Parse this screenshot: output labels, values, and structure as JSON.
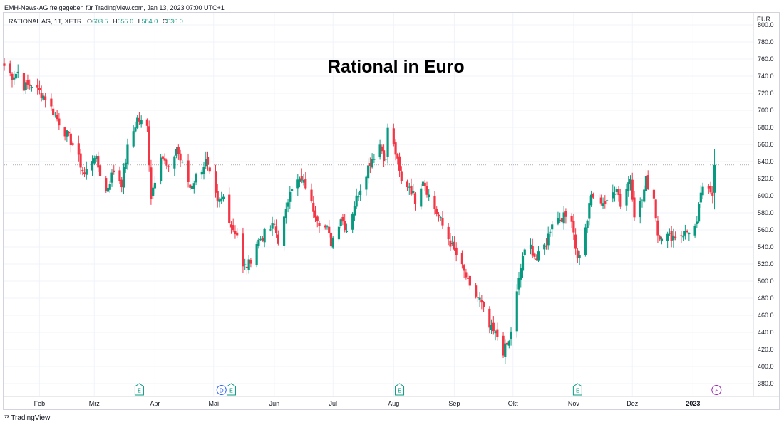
{
  "header": {
    "published_note": "EMH-News-AG freigegeben für TradingView.com, Jan 13, 2023 07:00 UTC+1"
  },
  "legend": {
    "symbol": "RATIONAL AG, 1T, XETR",
    "open_label": "O",
    "open_value": "603.5",
    "high_label": "H",
    "high_value": "655.0",
    "low_label": "L",
    "low_value": "584.0",
    "close_label": "C",
    "close_value": "636.0"
  },
  "currency": "EUR",
  "footer": {
    "brand": "TradingView"
  },
  "colors": {
    "up": "#089981",
    "down": "#f23645",
    "event_earnings": "#089981",
    "event_dividend": "#2962ff",
    "event_split": "#9c27b0"
  },
  "chart_data": {
    "type": "candlestick",
    "title": "Rational in Euro",
    "ylabel": "EUR",
    "ylim": [
      370,
      810
    ],
    "yticks": [
      380,
      400,
      420,
      440,
      460,
      480,
      500,
      520,
      540,
      560,
      580,
      600,
      620,
      640,
      660,
      680,
      700,
      720,
      740,
      760,
      780,
      800
    ],
    "ytick_labels": [
      "380.0",
      "400.0",
      "420.0",
      "440.0",
      "460.0",
      "480.0",
      "500.0",
      "520.0",
      "540.0",
      "560.0",
      "580.0",
      "600.0",
      "620.0",
      "640.0",
      "660.0",
      "680.0",
      "700.0",
      "720.0",
      "740.0",
      "760.0",
      "780.0",
      "800.0"
    ],
    "x_start": "2022-01-14",
    "x_end": "2023-01-22",
    "month_ticks": [
      {
        "date": "2022-02-01",
        "label": "Feb",
        "bold": false
      },
      {
        "date": "2022-03-01",
        "label": "Mrz",
        "bold": false
      },
      {
        "date": "2022-04-01",
        "label": "Apr",
        "bold": false
      },
      {
        "date": "2022-05-01",
        "label": "Mai",
        "bold": false
      },
      {
        "date": "2022-06-01",
        "label": "Jun",
        "bold": false
      },
      {
        "date": "2022-07-01",
        "label": "Jul",
        "bold": false
      },
      {
        "date": "2022-08-01",
        "label": "Aug",
        "bold": false
      },
      {
        "date": "2022-09-01",
        "label": "Sep",
        "bold": false
      },
      {
        "date": "2022-10-01",
        "label": "Okt",
        "bold": false
      },
      {
        "date": "2022-11-01",
        "label": "Nov",
        "bold": false
      },
      {
        "date": "2022-12-01",
        "label": "Dez",
        "bold": false
      },
      {
        "date": "2023-01-01",
        "label": "2023",
        "bold": true
      }
    ],
    "last_price_line": 636,
    "anchors": [
      {
        "date": "2022-01-14",
        "close": 752
      },
      {
        "date": "2022-01-18",
        "close": 740
      },
      {
        "date": "2022-01-21",
        "close": 745
      },
      {
        "date": "2022-01-24",
        "close": 728
      },
      {
        "date": "2022-01-28",
        "close": 730
      },
      {
        "date": "2022-02-04",
        "close": 715
      },
      {
        "date": "2022-02-10",
        "close": 690
      },
      {
        "date": "2022-02-14",
        "close": 675
      },
      {
        "date": "2022-02-18",
        "close": 660
      },
      {
        "date": "2022-02-24",
        "close": 625
      },
      {
        "date": "2022-03-01",
        "close": 648
      },
      {
        "date": "2022-03-07",
        "close": 605
      },
      {
        "date": "2022-03-11",
        "close": 630
      },
      {
        "date": "2022-03-15",
        "close": 615
      },
      {
        "date": "2022-03-18",
        "close": 655
      },
      {
        "date": "2022-03-23",
        "close": 690
      },
      {
        "date": "2022-03-28",
        "close": 680
      },
      {
        "date": "2022-03-30",
        "close": 600
      },
      {
        "date": "2022-04-04",
        "close": 650
      },
      {
        "date": "2022-04-08",
        "close": 628
      },
      {
        "date": "2022-04-12",
        "close": 655
      },
      {
        "date": "2022-04-19",
        "close": 610
      },
      {
        "date": "2022-04-22",
        "close": 622
      },
      {
        "date": "2022-04-27",
        "close": 640
      },
      {
        "date": "2022-05-03",
        "close": 590
      },
      {
        "date": "2022-05-06",
        "close": 598
      },
      {
        "date": "2022-05-10",
        "close": 565
      },
      {
        "date": "2022-05-13",
        "close": 555
      },
      {
        "date": "2022-05-16",
        "close": 515
      },
      {
        "date": "2022-05-19",
        "close": 520
      },
      {
        "date": "2022-05-23",
        "close": 545
      },
      {
        "date": "2022-05-27",
        "close": 555
      },
      {
        "date": "2022-06-01",
        "close": 565
      },
      {
        "date": "2022-06-03",
        "close": 548
      },
      {
        "date": "2022-06-07",
        "close": 580
      },
      {
        "date": "2022-06-09",
        "close": 610
      },
      {
        "date": "2022-06-14",
        "close": 618
      },
      {
        "date": "2022-06-17",
        "close": 612
      },
      {
        "date": "2022-06-20",
        "close": 590
      },
      {
        "date": "2022-06-24",
        "close": 570
      },
      {
        "date": "2022-06-28",
        "close": 560
      },
      {
        "date": "2022-06-30",
        "close": 545
      },
      {
        "date": "2022-07-05",
        "close": 575
      },
      {
        "date": "2022-07-08",
        "close": 560
      },
      {
        "date": "2022-07-12",
        "close": 590
      },
      {
        "date": "2022-07-15",
        "close": 610
      },
      {
        "date": "2022-07-20",
        "close": 640
      },
      {
        "date": "2022-07-25",
        "close": 660
      },
      {
        "date": "2022-07-28",
        "close": 640
      },
      {
        "date": "2022-07-29",
        "close": 680
      },
      {
        "date": "2022-08-02",
        "close": 650
      },
      {
        "date": "2022-08-05",
        "close": 615
      },
      {
        "date": "2022-08-09",
        "close": 612
      },
      {
        "date": "2022-08-12",
        "close": 595
      },
      {
        "date": "2022-08-16",
        "close": 620
      },
      {
        "date": "2022-08-19",
        "close": 600
      },
      {
        "date": "2022-08-24",
        "close": 575
      },
      {
        "date": "2022-08-30",
        "close": 545
      },
      {
        "date": "2022-09-02",
        "close": 530
      },
      {
        "date": "2022-09-07",
        "close": 505
      },
      {
        "date": "2022-09-09",
        "close": 490
      },
      {
        "date": "2022-09-14",
        "close": 478
      },
      {
        "date": "2022-09-19",
        "close": 445
      },
      {
        "date": "2022-09-23",
        "close": 435
      },
      {
        "date": "2022-09-26",
        "close": 418
      },
      {
        "date": "2022-09-29",
        "close": 428
      },
      {
        "date": "2022-10-03",
        "close": 485
      },
      {
        "date": "2022-10-06",
        "close": 530
      },
      {
        "date": "2022-10-10",
        "close": 540
      },
      {
        "date": "2022-10-13",
        "close": 525
      },
      {
        "date": "2022-10-18",
        "close": 545
      },
      {
        "date": "2022-10-21",
        "close": 570
      },
      {
        "date": "2022-10-26",
        "close": 575
      },
      {
        "date": "2022-10-31",
        "close": 575
      },
      {
        "date": "2022-11-03",
        "close": 525
      },
      {
        "date": "2022-11-07",
        "close": 560
      },
      {
        "date": "2022-11-10",
        "close": 600
      },
      {
        "date": "2022-11-15",
        "close": 595
      },
      {
        "date": "2022-11-18",
        "close": 590
      },
      {
        "date": "2022-11-23",
        "close": 612
      },
      {
        "date": "2022-11-25",
        "close": 590
      },
      {
        "date": "2022-11-30",
        "close": 622
      },
      {
        "date": "2022-12-02",
        "close": 580
      },
      {
        "date": "2022-12-06",
        "close": 595
      },
      {
        "date": "2022-12-08",
        "close": 618
      },
      {
        "date": "2022-12-12",
        "close": 598
      },
      {
        "date": "2022-12-14",
        "close": 555
      },
      {
        "date": "2022-12-20",
        "close": 552
      },
      {
        "date": "2022-12-28",
        "close": 556
      },
      {
        "date": "2023-01-03",
        "close": 565
      },
      {
        "date": "2023-01-05",
        "close": 605
      },
      {
        "date": "2023-01-11",
        "close": 605
      },
      {
        "date": "2023-01-12",
        "close": 636
      }
    ],
    "events": [
      {
        "date": "2022-03-24",
        "type": "E",
        "kind": "earnings"
      },
      {
        "date": "2022-05-05",
        "type": "D",
        "kind": "dividend"
      },
      {
        "date": "2022-05-10",
        "type": "E",
        "kind": "earnings"
      },
      {
        "date": "2022-08-04",
        "type": "E",
        "kind": "earnings"
      },
      {
        "date": "2022-11-03",
        "type": "E",
        "kind": "earnings"
      },
      {
        "date": "2023-01-13",
        "type": "⚡",
        "kind": "news"
      }
    ]
  }
}
